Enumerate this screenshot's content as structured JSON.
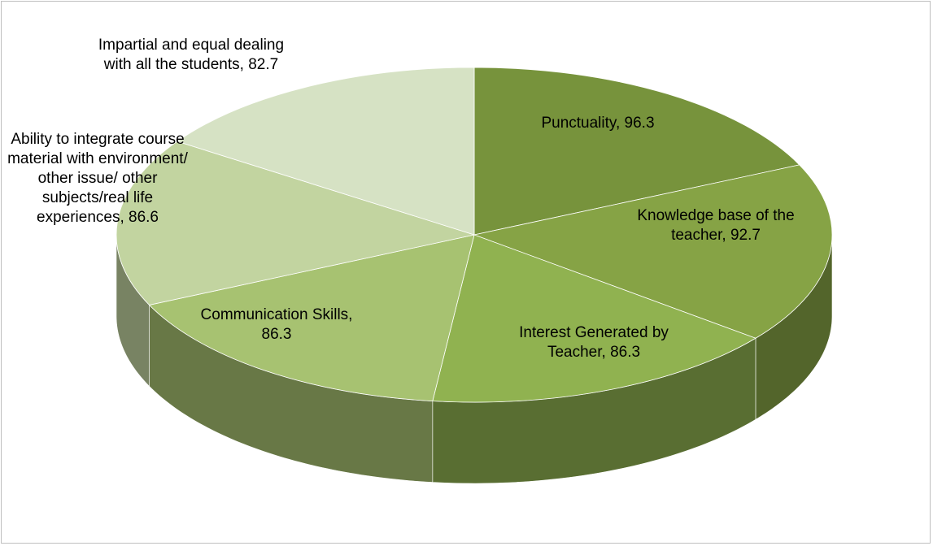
{
  "chart_data": {
    "type": "pie3d",
    "categories": [
      "Punctuality",
      "Knowledge base of the teacher",
      "Interest Generated by Teacher",
      "Communication Skills",
      "Ability to integrate course material with environment/ other issue/ other subjects/real life experiences",
      "Impartial and equal dealing with all the students"
    ],
    "values": [
      96.3,
      92.7,
      86.3,
      86.3,
      86.6,
      82.7
    ],
    "colors": [
      "#77933c",
      "#86a345",
      "#90b250",
      "#a7c271",
      "#c2d4a0",
      "#d6e2c4"
    ]
  }
}
